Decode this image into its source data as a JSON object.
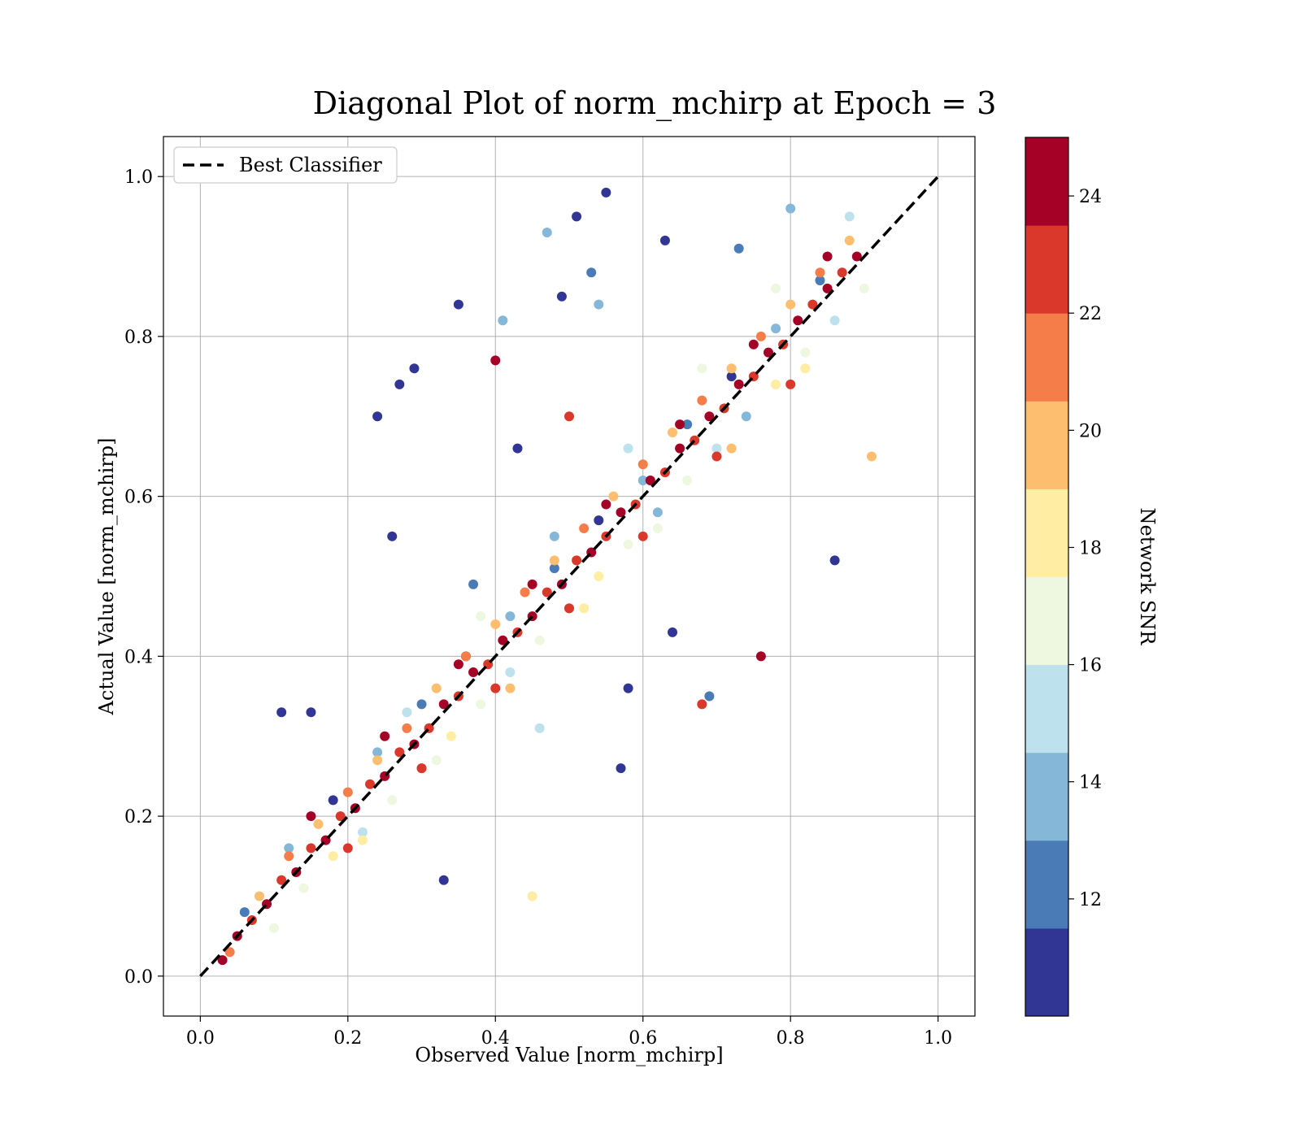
{
  "chart_data": {
    "type": "scatter",
    "title": "Diagonal Plot of norm_mchirp at Epoch = 3",
    "xlabel": "Observed Value [norm_mchirp]",
    "ylabel": "Actual Value [norm_mchirp]",
    "xlim": [
      -0.05,
      1.05
    ],
    "ylim": [
      -0.05,
      1.05
    ],
    "xticks": [
      0.0,
      0.2,
      0.4,
      0.6,
      0.8,
      1.0
    ],
    "yticks": [
      0.0,
      0.2,
      0.4,
      0.6,
      0.8,
      1.0
    ],
    "xtick_labels": [
      "0.0",
      "0.2",
      "0.4",
      "0.6",
      "0.8",
      "1.0"
    ],
    "ytick_labels": [
      "0.0",
      "0.2",
      "0.4",
      "0.6",
      "0.8",
      "1.0"
    ],
    "grid": true,
    "legend": {
      "position": "top-left",
      "entries": [
        "Best Classifier"
      ]
    },
    "reference_line": {
      "name": "Best Classifier",
      "style": "dashed",
      "color": "#000000",
      "from": [
        0.0,
        0.0
      ],
      "to": [
        1.0,
        1.0
      ]
    },
    "colorbar": {
      "label": "Network SNR",
      "range": [
        10,
        25
      ],
      "ticks": [
        12,
        14,
        16,
        18,
        20,
        22,
        24
      ],
      "tick_labels": [
        "12",
        "14",
        "16",
        "18",
        "20",
        "22",
        "24"
      ],
      "bins": [
        {
          "from": 10.0,
          "to": 11.5,
          "color": "#313695"
        },
        {
          "from": 11.5,
          "to": 13.0,
          "color": "#4a7bb7"
        },
        {
          "from": 13.0,
          "to": 14.5,
          "color": "#84b7d8"
        },
        {
          "from": 14.5,
          "to": 16.0,
          "color": "#bde2ee"
        },
        {
          "from": 16.0,
          "to": 17.5,
          "color": "#eef7e0"
        },
        {
          "from": 17.5,
          "to": 19.0,
          "color": "#feeda2"
        },
        {
          "from": 19.0,
          "to": 20.5,
          "color": "#fdbe6f"
        },
        {
          "from": 20.5,
          "to": 22.0,
          "color": "#f57d4a"
        },
        {
          "from": 22.0,
          "to": 23.5,
          "color": "#da382a"
        },
        {
          "from": 23.5,
          "to": 25.0,
          "color": "#a50026"
        }
      ]
    },
    "series": [
      {
        "x": [
          0.03,
          0.05,
          0.07,
          0.09,
          0.11,
          0.13,
          0.15,
          0.17,
          0.19,
          0.21,
          0.23,
          0.25,
          0.27,
          0.29,
          0.31,
          0.33,
          0.35,
          0.37,
          0.39,
          0.41,
          0.43,
          0.45,
          0.47,
          0.49,
          0.51,
          0.53,
          0.55,
          0.57,
          0.59,
          0.61,
          0.63,
          0.65,
          0.67,
          0.69,
          0.71,
          0.73,
          0.75,
          0.77,
          0.79,
          0.81,
          0.83,
          0.85,
          0.87,
          0.89,
          0.04,
          0.08,
          0.12,
          0.16,
          0.2,
          0.24,
          0.28,
          0.32,
          0.36,
          0.4,
          0.44,
          0.48,
          0.52,
          0.56,
          0.6,
          0.64,
          0.68,
          0.72,
          0.76,
          0.8,
          0.84,
          0.88,
          0.1,
          0.14,
          0.18,
          0.22,
          0.26,
          0.3,
          0.34,
          0.38,
          0.42,
          0.46,
          0.5,
          0.54,
          0.58,
          0.62,
          0.66,
          0.7,
          0.74,
          0.78,
          0.82,
          0.86,
          0.9,
          0.06,
          0.12,
          0.18,
          0.24,
          0.3,
          0.36,
          0.42,
          0.48,
          0.54,
          0.6,
          0.66,
          0.72,
          0.78,
          0.84,
          0.15,
          0.25,
          0.35,
          0.45,
          0.55,
          0.65,
          0.75,
          0.85,
          0.2,
          0.3,
          0.4,
          0.5,
          0.6,
          0.7,
          0.8,
          0.28,
          0.38,
          0.48,
          0.58,
          0.68,
          0.78,
          0.88,
          0.22,
          0.32,
          0.42,
          0.52,
          0.62,
          0.72,
          0.82,
          0.55,
          0.51,
          0.53,
          0.49,
          0.35,
          0.29,
          0.24,
          0.27,
          0.47,
          0.11,
          0.15,
          0.4,
          0.45,
          0.57,
          0.63,
          0.73,
          0.8,
          0.91,
          0.46,
          0.54,
          0.33,
          0.43,
          0.26,
          0.37,
          0.41,
          0.64,
          0.69,
          0.76,
          0.68,
          0.86,
          0.58,
          0.5
        ],
        "y": [
          0.02,
          0.05,
          0.07,
          0.09,
          0.12,
          0.13,
          0.16,
          0.17,
          0.2,
          0.21,
          0.24,
          0.25,
          0.28,
          0.29,
          0.31,
          0.34,
          0.35,
          0.38,
          0.39,
          0.42,
          0.43,
          0.45,
          0.48,
          0.49,
          0.52,
          0.53,
          0.55,
          0.58,
          0.59,
          0.62,
          0.63,
          0.66,
          0.67,
          0.7,
          0.71,
          0.74,
          0.75,
          0.78,
          0.79,
          0.82,
          0.84,
          0.86,
          0.88,
          0.9,
          0.03,
          0.1,
          0.15,
          0.19,
          0.23,
          0.27,
          0.31,
          0.36,
          0.4,
          0.44,
          0.48,
          0.52,
          0.56,
          0.6,
          0.64,
          0.68,
          0.72,
          0.76,
          0.8,
          0.84,
          0.88,
          0.92,
          0.06,
          0.11,
          0.15,
          0.18,
          0.22,
          0.26,
          0.3,
          0.34,
          0.38,
          0.42,
          0.46,
          0.5,
          0.54,
          0.58,
          0.62,
          0.66,
          0.7,
          0.74,
          0.78,
          0.82,
          0.86,
          0.08,
          0.16,
          0.22,
          0.28,
          0.34,
          0.4,
          0.45,
          0.51,
          0.57,
          0.62,
          0.69,
          0.75,
          0.81,
          0.87,
          0.2,
          0.3,
          0.39,
          0.49,
          0.59,
          0.69,
          0.79,
          0.9,
          0.16,
          0.26,
          0.36,
          0.46,
          0.55,
          0.65,
          0.74,
          0.33,
          0.45,
          0.55,
          0.66,
          0.76,
          0.86,
          0.95,
          0.17,
          0.27,
          0.36,
          0.46,
          0.56,
          0.66,
          0.76,
          0.98,
          0.95,
          0.88,
          0.85,
          0.84,
          0.76,
          0.7,
          0.74,
          0.93,
          0.33,
          0.33,
          0.77,
          0.1,
          0.26,
          0.92,
          0.91,
          0.96,
          0.65,
          0.31,
          0.84,
          0.12,
          0.66,
          0.55,
          0.49,
          0.82,
          0.43,
          0.35,
          0.4,
          0.34,
          0.52,
          0.36,
          0.7
        ],
        "snr": [
          24,
          24,
          23,
          24,
          22,
          24,
          23,
          24,
          22,
          24,
          23,
          24,
          22,
          24,
          23,
          24,
          22,
          24,
          23,
          24,
          22,
          24,
          23,
          24,
          22,
          24,
          23,
          24,
          22,
          24,
          23,
          24,
          22,
          24,
          23,
          24,
          22,
          24,
          23,
          24,
          22,
          24,
          23,
          24,
          21,
          20,
          21,
          20,
          21,
          19,
          21,
          20,
          21,
          19,
          21,
          20,
          21,
          19,
          21,
          20,
          21,
          19,
          21,
          20,
          21,
          19,
          17,
          16,
          18,
          15,
          17,
          14,
          18,
          16,
          15,
          17,
          14,
          18,
          16,
          13,
          17,
          15,
          14,
          18,
          16,
          15,
          17,
          12,
          13,
          11,
          13,
          12,
          11,
          13,
          12,
          11,
          13,
          12,
          11,
          13,
          12,
          24,
          24,
          24,
          24,
          24,
          24,
          24,
          24,
          22,
          22,
          22,
          22,
          22,
          22,
          22,
          15,
          16,
          14,
          15,
          16,
          17,
          15,
          18,
          17,
          19,
          18,
          17,
          19,
          18,
          11,
          11,
          12,
          11,
          11,
          11,
          11,
          11,
          13,
          11,
          11,
          24,
          18,
          11,
          11,
          12,
          13,
          19,
          15,
          14,
          11,
          11,
          11,
          12,
          13,
          11,
          12,
          24,
          22,
          11,
          11,
          23
        ]
      }
    ]
  }
}
